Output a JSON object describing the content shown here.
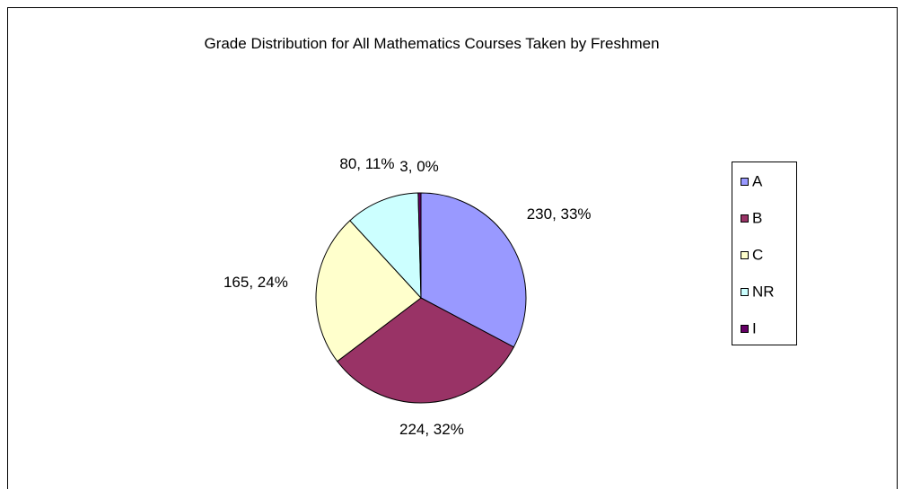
{
  "chart_data": {
    "type": "pie",
    "title": "Grade Distribution for All Mathematics Courses Taken by Freshmen",
    "categories": [
      "A",
      "B",
      "C",
      "NR",
      "I"
    ],
    "values": [
      230,
      224,
      165,
      80,
      3
    ],
    "value_labels": [
      "230, 33%",
      "224, 32%",
      "165, 24%",
      "80, 11%",
      "3, 0%"
    ],
    "colors": [
      "#9999ff",
      "#993366",
      "#ffffcc",
      "#ccffff",
      "#660066"
    ],
    "legend": "right"
  }
}
